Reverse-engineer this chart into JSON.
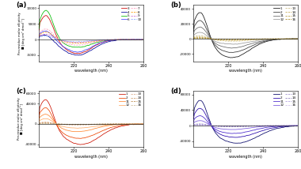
{
  "panel_labels": [
    "(a)",
    "(b)",
    "(c)",
    "(d)"
  ],
  "xlabel": "wavelength (nm)",
  "wavelength_range": [
    200,
    260
  ],
  "panel_a": {
    "ylim": [
      -7000,
      11000
    ],
    "yticks": [
      -5000,
      0,
      5000,
      10000
    ],
    "colors_solid": [
      "#cc0000",
      "#000099",
      "#00bb00",
      "#4444ff"
    ],
    "colors_dashed": [
      "#ff99bb",
      "#ff9900",
      "#cc66cc",
      "#88aaff"
    ],
    "leg_solid": [
      "3",
      "4",
      "5",
      "6"
    ],
    "leg_dashed": [
      "7",
      "8",
      "9",
      "10"
    ]
  },
  "panel_b": {
    "ylim": [
      -30000,
      45000
    ],
    "yticks": [
      -20000,
      0,
      20000,
      40000
    ],
    "colors_solid": [
      "#111111",
      "#333333",
      "#666666",
      "#999999"
    ],
    "colors_dashed": [
      "#c8b87a",
      "#c8a850",
      "#b89830",
      "#a88820"
    ],
    "leg_solid": [
      "1",
      "2",
      "11",
      "12"
    ],
    "leg_dashed": [
      "13",
      "14",
      "15",
      "16"
    ]
  },
  "panel_c": {
    "ylim": [
      -45000,
      65000
    ],
    "yticks": [
      -40000,
      0,
      40000,
      60000
    ],
    "colors_solid": [
      "#cc1100",
      "#ee4400",
      "#ff8833",
      "#ffaa66"
    ],
    "colors_dashed": [
      "#ddaa88",
      "#cc9966",
      "#bb8844",
      "#ccbb99"
    ],
    "leg_solid": [
      "1",
      "2",
      "11",
      "12"
    ],
    "leg_dashed": [
      "13",
      "14",
      "15",
      "16"
    ]
  },
  "panel_d": {
    "ylim": [
      -55000,
      90000
    ],
    "yticks": [
      -40000,
      0,
      40000,
      80000
    ],
    "colors_solid": [
      "#000066",
      "#2200aa",
      "#4422cc",
      "#7755dd"
    ],
    "colors_dashed": [
      "#9988cc",
      "#8877bb",
      "#aa99dd",
      "#ccbbee"
    ],
    "leg_solid": [
      "1",
      "2",
      "11",
      "12"
    ],
    "leg_dashed": [
      "13",
      "14",
      "15",
      "16"
    ]
  }
}
